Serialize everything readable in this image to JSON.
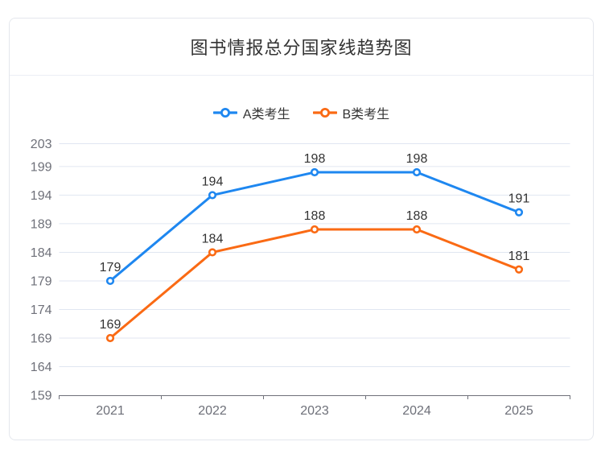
{
  "chart_data": {
    "type": "line",
    "title": "图书情报总分国家线趋势图",
    "categories": [
      "2021",
      "2022",
      "2023",
      "2024",
      "2025"
    ],
    "series": [
      {
        "name": "A类考生",
        "color": "#1e87f0",
        "values": [
          179,
          194,
          198,
          198,
          191
        ]
      },
      {
        "name": "B类考生",
        "color": "#fa6a14",
        "values": [
          169,
          184,
          188,
          188,
          181
        ]
      }
    ],
    "yticks": [
      159,
      164,
      169,
      174,
      179,
      184,
      189,
      194,
      199,
      203
    ],
    "ylim": [
      159,
      203
    ],
    "xlabel": "",
    "ylabel": "",
    "grid": true,
    "legend_position": "top",
    "marker": "hollow-circle",
    "grid_color": "#e0e6f1",
    "axis_line_color": "#6e7079",
    "axis_label_color": "#6e7079",
    "data_label_color": "#333333",
    "title_color": "#333333",
    "card_border_color": "#e4e7ed"
  }
}
